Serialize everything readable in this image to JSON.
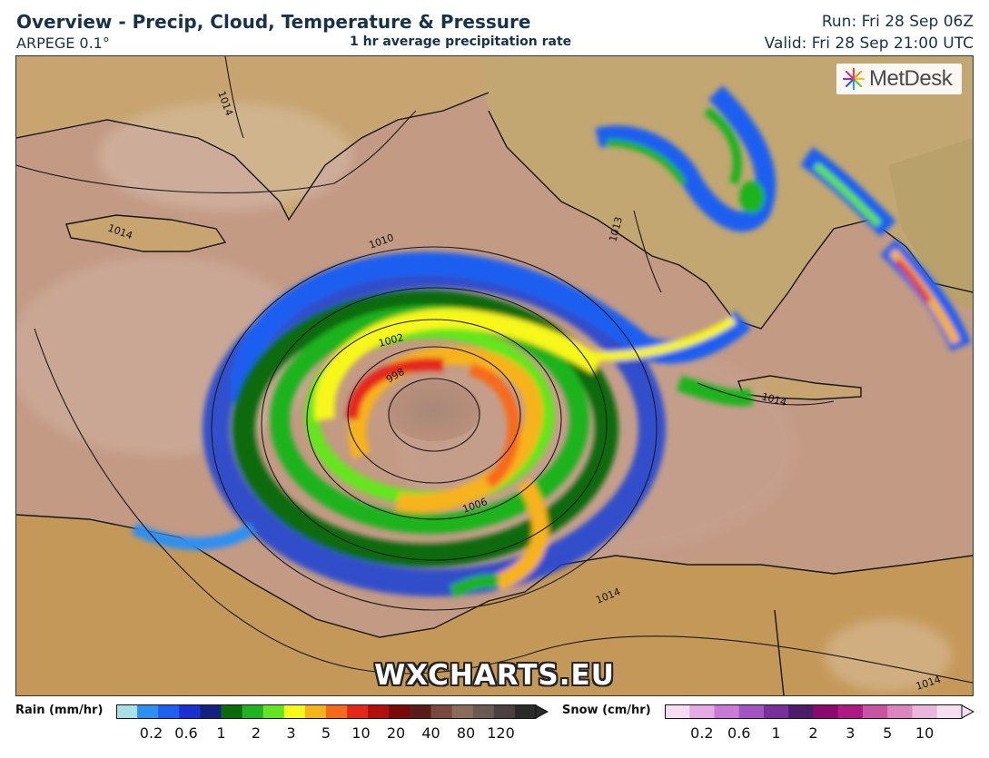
{
  "header": {
    "title": "Overview - Precip, Cloud, Temperature & Pressure",
    "model": "ARPEGE 0.1°",
    "product": "1 hr average precipitation rate",
    "run": "Run: Fri 28 Sep 06Z",
    "valid": "Valid: Fri 28 Sep 21:00 UTC"
  },
  "map": {
    "region": "Central Mediterranean",
    "isobars": {
      "labels": [
        "1014",
        "1014",
        "1010",
        "1013",
        "1002",
        "998",
        "1006",
        "1014",
        "1014",
        "1014"
      ]
    },
    "feature": "medicane (tropical-like cyclone) over central Mediterranean Sea",
    "colors": {
      "sea_background": "#c49b86",
      "land_background": "#c9a46f",
      "isobar": "#1a1a1a",
      "coastline": "#111111"
    }
  },
  "logo": {
    "text": "MetDesk",
    "icon": "metdesk-starburst-icon"
  },
  "watermark": "WXCHARTS.EU",
  "legend": {
    "rain": {
      "label": "Rain (mm/hr)",
      "colors": [
        "#a9dfe9",
        "#2e8ff0",
        "#1e5ef0",
        "#1b2fd2",
        "#13227e",
        "#0b6a0b",
        "#1fb31f",
        "#63e61f",
        "#f7f71a",
        "#f7b31a",
        "#f76a1a",
        "#e6281a",
        "#b30f0f",
        "#7a0a0a",
        "#5c1a1a",
        "#7a4a3c",
        "#8c6a5c",
        "#6a5a52",
        "#4a4040",
        "#2a2a2a"
      ],
      "ticks": [
        "0.2",
        "0.6",
        "1",
        "2",
        "3",
        "5",
        "10",
        "20",
        "40",
        "80",
        "120"
      ]
    },
    "snow": {
      "label": "Snow (cm/hr)",
      "colors": [
        "#f6dcf2",
        "#e5a9e3",
        "#c97ad6",
        "#a453c4",
        "#7a2f9c",
        "#4d1c6a",
        "#8c0a6e",
        "#b01a86",
        "#c954a6",
        "#dc86c0",
        "#ebb6dc",
        "#f6e0f0"
      ],
      "ticks": [
        "0.2",
        "0.6",
        "1",
        "2",
        "3",
        "5",
        "10"
      ]
    }
  }
}
